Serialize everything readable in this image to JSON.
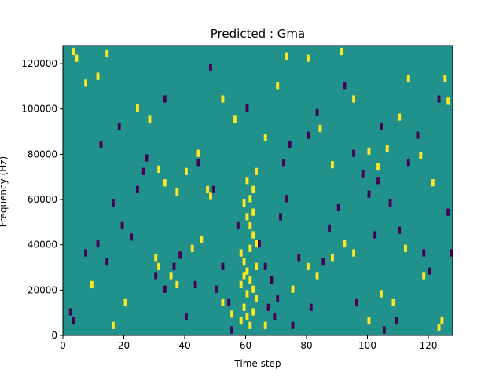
{
  "chart_data": {
    "type": "heatmap",
    "title": "Predicted : Gma",
    "xlabel": "Time step",
    "ylabel": "Frequency (Hz)",
    "xlim": [
      0,
      128
    ],
    "ylim": [
      0,
      128000
    ],
    "x_ticks": [
      0,
      20,
      40,
      60,
      80,
      100,
      120
    ],
    "y_ticks": [
      0,
      20000,
      40000,
      60000,
      80000,
      100000,
      120000
    ],
    "y_tick_labels": [
      "0",
      "20000",
      "40000",
      "60000",
      "80000",
      "100000",
      "120000"
    ],
    "grid": false,
    "colormap": "viridis",
    "colors": {
      "background": "#21918c",
      "high": "#fde725",
      "low": "#440154"
    },
    "background_level": "mid",
    "cells": {
      "high": [
        [
          3,
          125000
        ],
        [
          4,
          122000
        ],
        [
          7,
          111000
        ],
        [
          11,
          114000
        ],
        [
          14,
          124000
        ],
        [
          24,
          100000
        ],
        [
          28,
          95000
        ],
        [
          31,
          73000
        ],
        [
          33,
          67000
        ],
        [
          37,
          63000
        ],
        [
          40,
          72000
        ],
        [
          44,
          80000
        ],
        [
          47,
          64000
        ],
        [
          48,
          61000
        ],
        [
          52,
          104000
        ],
        [
          56,
          95000
        ],
        [
          63,
          72000
        ],
        [
          66,
          87000
        ],
        [
          70,
          110000
        ],
        [
          73,
          123000
        ],
        [
          80,
          122000
        ],
        [
          84,
          91000
        ],
        [
          88,
          75000
        ],
        [
          91,
          125000
        ],
        [
          95,
          104000
        ],
        [
          100,
          81000
        ],
        [
          103,
          74000
        ],
        [
          106,
          82000
        ],
        [
          110,
          96000
        ],
        [
          113,
          113000
        ],
        [
          117,
          79000
        ],
        [
          121,
          67000
        ],
        [
          125,
          113000
        ],
        [
          126,
          103000
        ],
        [
          59,
          58000
        ],
        [
          60,
          52000
        ],
        [
          61,
          48000
        ],
        [
          62,
          44000
        ],
        [
          63,
          40000
        ],
        [
          58,
          36000
        ],
        [
          59,
          32000
        ],
        [
          60,
          28000
        ],
        [
          61,
          24000
        ],
        [
          62,
          20000
        ],
        [
          63,
          16000
        ],
        [
          59,
          12000
        ],
        [
          60,
          8000
        ],
        [
          61,
          4000
        ],
        [
          62,
          64000
        ],
        [
          60,
          68000
        ],
        [
          61,
          60000
        ],
        [
          59,
          26000
        ],
        [
          60,
          18000
        ],
        [
          62,
          10000
        ],
        [
          63,
          30000
        ],
        [
          58,
          22000
        ],
        [
          61,
          38000
        ],
        [
          62,
          54000
        ],
        [
          30,
          34000
        ],
        [
          31,
          30000
        ],
        [
          35,
          26000
        ],
        [
          37,
          22000
        ],
        [
          42,
          38000
        ],
        [
          45,
          42000
        ],
        [
          52,
          14000
        ],
        [
          55,
          9000
        ],
        [
          58,
          6000
        ],
        [
          66,
          4000
        ],
        [
          75,
          20000
        ],
        [
          80,
          30000
        ],
        [
          83,
          26000
        ],
        [
          88,
          34000
        ],
        [
          92,
          40000
        ],
        [
          95,
          36000
        ],
        [
          100,
          6000
        ],
        [
          104,
          18000
        ],
        [
          108,
          14000
        ],
        [
          112,
          38000
        ],
        [
          118,
          26000
        ],
        [
          123,
          3000
        ],
        [
          124,
          6000
        ],
        [
          20,
          14000
        ],
        [
          16,
          4000
        ],
        [
          9,
          22000
        ]
      ],
      "low": [
        [
          2,
          10000
        ],
        [
          3,
          6000
        ],
        [
          7,
          36000
        ],
        [
          11,
          40000
        ],
        [
          14,
          32000
        ],
        [
          19,
          48000
        ],
        [
          22,
          43000
        ],
        [
          26,
          72000
        ],
        [
          30,
          26000
        ],
        [
          33,
          20000
        ],
        [
          36,
          30000
        ],
        [
          38,
          35000
        ],
        [
          40,
          8000
        ],
        [
          44,
          76000
        ],
        [
          49,
          64000
        ],
        [
          52,
          30000
        ],
        [
          54,
          14000
        ],
        [
          55,
          2000
        ],
        [
          57,
          48000
        ],
        [
          60,
          100000
        ],
        [
          64,
          40000
        ],
        [
          66,
          30000
        ],
        [
          67,
          12000
        ],
        [
          68,
          24000
        ],
        [
          69,
          8000
        ],
        [
          70,
          16000
        ],
        [
          71,
          52000
        ],
        [
          72,
          76000
        ],
        [
          73,
          60000
        ],
        [
          75,
          4000
        ],
        [
          77,
          34000
        ],
        [
          80,
          88000
        ],
        [
          83,
          98000
        ],
        [
          87,
          47000
        ],
        [
          92,
          110000
        ],
        [
          95,
          80000
        ],
        [
          98,
          71000
        ],
        [
          100,
          62000
        ],
        [
          102,
          44000
        ],
        [
          104,
          92000
        ],
        [
          105,
          2000
        ],
        [
          107,
          58000
        ],
        [
          110,
          46000
        ],
        [
          113,
          76000
        ],
        [
          116,
          88000
        ],
        [
          120,
          28000
        ],
        [
          123,
          104000
        ],
        [
          126,
          54000
        ],
        [
          127,
          36000
        ],
        [
          12,
          84000
        ],
        [
          16,
          58000
        ],
        [
          18,
          92000
        ],
        [
          27,
          78000
        ],
        [
          33,
          104000
        ],
        [
          43,
          22000
        ],
        [
          48,
          118000
        ],
        [
          50,
          20000
        ],
        [
          85,
          32000
        ],
        [
          90,
          56000
        ],
        [
          96,
          14000
        ],
        [
          103,
          68000
        ],
        [
          109,
          6000
        ],
        [
          118,
          36000
        ],
        [
          24,
          64000
        ],
        [
          74,
          84000
        ],
        [
          81,
          12000
        ]
      ]
    }
  }
}
